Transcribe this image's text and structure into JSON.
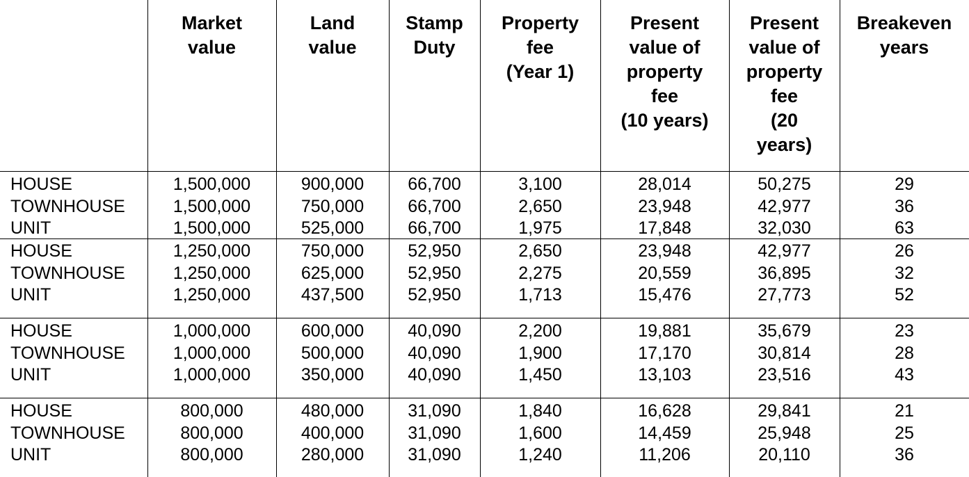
{
  "headers": [
    "",
    "Market\nvalue",
    "Land\nvalue",
    "Stamp\nDuty",
    "Property\nfee\n(Year 1)",
    "Present\nvalue of\nproperty\nfee\n(10 years)",
    "Present\nvalue of\nproperty\nfee\n(20\nyears)",
    "Breakeven\nyears"
  ],
  "groups": [
    {
      "rows": [
        [
          "HOUSE",
          "1,500,000",
          "900,000",
          "66,700",
          "3,100",
          "28,014",
          "50,275",
          "29"
        ],
        [
          "TOWNHOUSE",
          "1,500,000",
          "750,000",
          "66,700",
          "2,650",
          "23,948",
          "42,977",
          "36"
        ],
        [
          "UNIT",
          "1,500,000",
          "525,000",
          "66,700",
          "1,975",
          "17,848",
          "32,030",
          "63"
        ]
      ]
    },
    {
      "rows": [
        [
          "HOUSE",
          "1,250,000",
          "750,000",
          "52,950",
          "2,650",
          "23,948",
          "42,977",
          "26"
        ],
        [
          "TOWNHOUSE",
          "1,250,000",
          "625,000",
          "52,950",
          "2,275",
          "20,559",
          "36,895",
          "32"
        ],
        [
          "UNIT",
          "1,250,000",
          "437,500",
          "52,950",
          "1,713",
          "15,476",
          "27,773",
          "52"
        ]
      ]
    },
    {
      "rows": [
        [
          "HOUSE",
          "1,000,000",
          "600,000",
          "40,090",
          "2,200",
          "19,881",
          "35,679",
          "23"
        ],
        [
          "TOWNHOUSE",
          "1,000,000",
          "500,000",
          "40,090",
          "1,900",
          "17,170",
          "30,814",
          "28"
        ],
        [
          "UNIT",
          "1,000,000",
          "350,000",
          "40,090",
          "1,450",
          "13,103",
          "23,516",
          "43"
        ]
      ]
    },
    {
      "rows": [
        [
          "HOUSE",
          "800,000",
          "480,000",
          "31,090",
          "1,840",
          "16,628",
          "29,841",
          "21"
        ],
        [
          "TOWNHOUSE",
          "800,000",
          "400,000",
          "31,090",
          "1,600",
          "14,459",
          "25,948",
          "25"
        ],
        [
          "UNIT",
          "800,000",
          "280,000",
          "31,090",
          "1,240",
          "11,206",
          "20,110",
          "36"
        ]
      ]
    }
  ]
}
